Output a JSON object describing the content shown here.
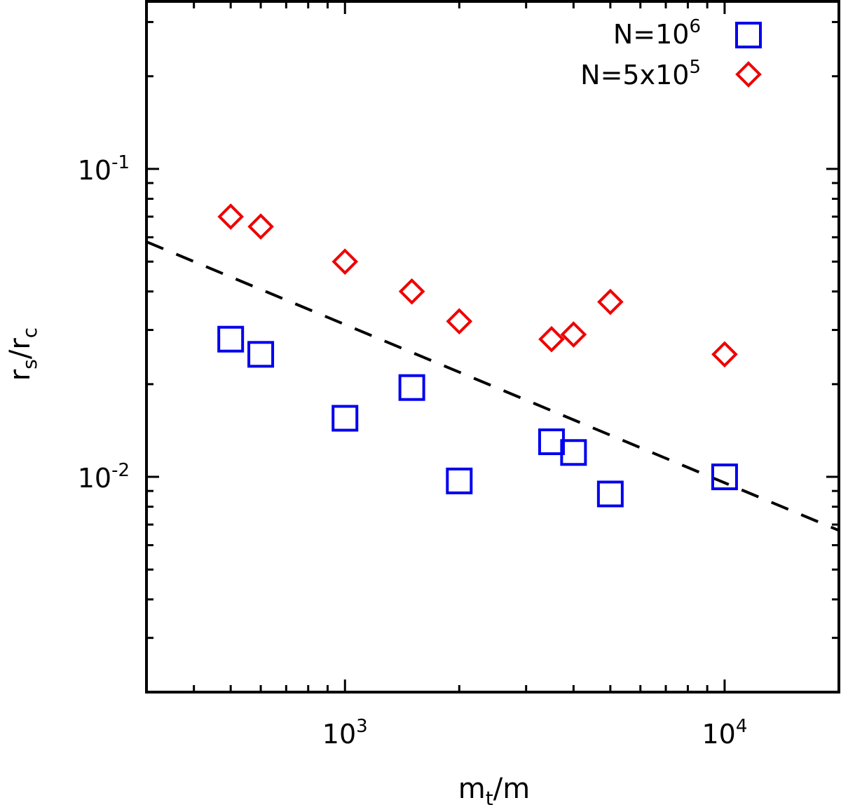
{
  "chart_data": {
    "type": "scatter",
    "title": "",
    "xlabel": {
      "main": "m",
      "sub": "t",
      "rest": "/m"
    },
    "ylabel": {
      "main": "r",
      "sub": "s",
      "slash": "/r",
      "sub2": "c"
    },
    "xscale": "log",
    "yscale": "log",
    "xlim": [
      300,
      20000
    ],
    "ylim": [
      0.002,
      0.35
    ],
    "x_ticks": [
      {
        "value": 1000,
        "base": "10",
        "exp": "3"
      },
      {
        "value": 10000,
        "base": "10",
        "exp": "4"
      }
    ],
    "y_ticks": [
      {
        "value": 0.01,
        "base": "10",
        "exp": "-2"
      },
      {
        "value": 0.1,
        "base": "10",
        "exp": "-1"
      }
    ],
    "legend_position": "top-right",
    "series": [
      {
        "name": "N=10^6",
        "legend_base": "N=10",
        "legend_exp": "6",
        "marker": "square",
        "color": "#0000ee",
        "points": [
          [
            500,
            0.028
          ],
          [
            600,
            0.025
          ],
          [
            1000,
            0.0155
          ],
          [
            1500,
            0.0195
          ],
          [
            2000,
            0.0097
          ],
          [
            3500,
            0.013
          ],
          [
            4000,
            0.012
          ],
          [
            5000,
            0.0088
          ],
          [
            10000,
            0.01
          ]
        ]
      },
      {
        "name": "N=5x10^5",
        "legend_base": "N=5x10",
        "legend_exp": "5",
        "marker": "diamond",
        "color": "#ee0000",
        "points": [
          [
            500,
            0.07
          ],
          [
            600,
            0.065
          ],
          [
            1000,
            0.05
          ],
          [
            1500,
            0.04
          ],
          [
            2000,
            0.032
          ],
          [
            3500,
            0.028
          ],
          [
            4000,
            0.029
          ],
          [
            5000,
            0.037
          ],
          [
            10000,
            0.025
          ]
        ]
      }
    ],
    "fit_line": {
      "style": "dashed",
      "color": "#000000",
      "points": [
        [
          300,
          0.058
        ],
        [
          20000,
          0.0067
        ]
      ]
    }
  }
}
